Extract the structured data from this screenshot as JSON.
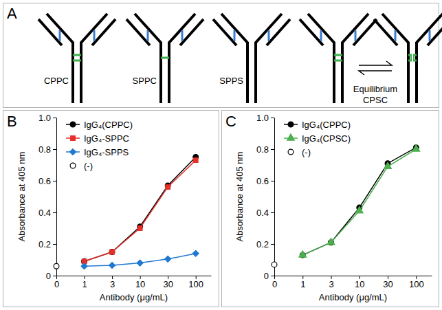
{
  "diagram": {
    "panel": "A",
    "labels": [
      "CPPC",
      "SPPC",
      "SPPS"
    ],
    "equilibrium_label": "Equilibrium",
    "equilibrium_name": "CPSC"
  },
  "chart_data": [
    {
      "type": "line",
      "title": "B",
      "x_label": "Antibody (μg/mL)",
      "y_label": "Absorbance at 405 nm",
      "categories": [
        "0",
        "1",
        "3",
        "10",
        "30",
        "100"
      ],
      "ylim": [
        0,
        1
      ],
      "yticks": [
        0,
        0.2,
        0.4,
        0.6,
        0.8,
        {
          "value": 1,
          "label": "1.0"
        }
      ],
      "legend": "upper left",
      "series": [
        {
          "name": "IgG₄(CPPC)",
          "color": "#000000",
          "marker": "circle",
          "line_style": "solid",
          "values": [
            null,
            0.09,
            0.15,
            0.31,
            0.57,
            0.75
          ]
        },
        {
          "name": "IgG₄-SPPC",
          "color": "#e8302a",
          "marker": "square",
          "line_style": "solid",
          "values": [
            null,
            0.09,
            0.15,
            0.3,
            0.56,
            0.73
          ]
        },
        {
          "name": "IgG₄-SPPS",
          "color": "#1f78d1",
          "marker": "diamond",
          "line_style": "solid",
          "values": [
            null,
            0.06,
            0.065,
            0.08,
            0.105,
            0.14
          ]
        },
        {
          "name": "(-)",
          "color": "#ffffff",
          "marker": "circle",
          "line_style": "none",
          "values": [
            0.06,
            null,
            null,
            null,
            null,
            null
          ]
        }
      ]
    },
    {
      "type": "line",
      "title": "C",
      "x_label": "Antibody (μg/mL)",
      "y_label": "Absorbance at 405 nm",
      "categories": [
        "0",
        "1",
        "3",
        "10",
        "30",
        "100"
      ],
      "ylim": [
        0,
        1
      ],
      "yticks": [
        0,
        0.2,
        0.4,
        0.6,
        0.8,
        {
          "value": 1,
          "label": "1.0"
        }
      ],
      "legend": "upper left",
      "series": [
        {
          "name": "IgG₄(CPPC)",
          "color": "#000000",
          "marker": "circle",
          "line_style": "solid",
          "values": [
            null,
            0.13,
            0.21,
            0.43,
            0.71,
            0.81
          ]
        },
        {
          "name": "IgG₄(CPSC)",
          "color": "#4caf50",
          "marker": "triangle",
          "line_style": "solid",
          "values": [
            null,
            0.13,
            0.21,
            0.41,
            0.69,
            0.8
          ]
        },
        {
          "name": "(-)",
          "color": "#ffffff",
          "marker": "circle",
          "line_style": "none",
          "values": [
            0.07,
            null,
            null,
            null,
            null,
            null
          ]
        }
      ]
    }
  ]
}
